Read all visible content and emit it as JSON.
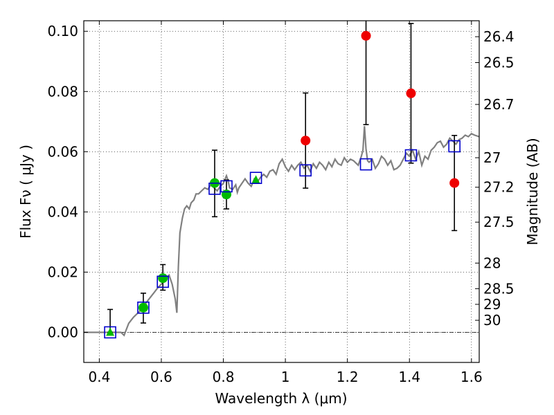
{
  "chart_data": {
    "type": "scatter",
    "xlabel": "Wavelength  λ (μm)",
    "ylabel": "Flux  Fν  ( μJy )",
    "ylabel_right": "Magnitude (AB)",
    "xlim": [
      0.35,
      1.625
    ],
    "ylim": [
      -0.01,
      0.1035
    ],
    "grid": true,
    "x_ticks": [
      {
        "value": 0.4,
        "label": "0.4"
      },
      {
        "value": 0.6,
        "label": "0.6"
      },
      {
        "value": 0.8,
        "label": "0.8"
      },
      {
        "value": 1.0,
        "label": "1"
      },
      {
        "value": 1.2,
        "label": "1.2"
      },
      {
        "value": 1.4,
        "label": "1.4"
      },
      {
        "value": 1.6,
        "label": "1.6"
      }
    ],
    "y_ticks": [
      {
        "value": 0.0,
        "label": "0.00"
      },
      {
        "value": 0.02,
        "label": "0.02"
      },
      {
        "value": 0.04,
        "label": "0.04"
      },
      {
        "value": 0.06,
        "label": "0.06"
      },
      {
        "value": 0.08,
        "label": "0.08"
      },
      {
        "value": 0.1,
        "label": "0.10"
      }
    ],
    "mag_ticks": [
      {
        "flux": 0.0982,
        "label": "26.4"
      },
      {
        "flux": 0.0896,
        "label": "26.5"
      },
      {
        "flux": 0.0757,
        "label": "26.7"
      },
      {
        "flux": 0.058,
        "label": "27"
      },
      {
        "flux": 0.0482,
        "label": "27.2"
      },
      {
        "flux": 0.0366,
        "label": "27.5"
      },
      {
        "flux": 0.023,
        "label": "28"
      },
      {
        "flux": 0.0145,
        "label": "28.5"
      },
      {
        "flux": 0.0093,
        "label": "29"
      },
      {
        "flux": 0.004,
        "label": "30"
      }
    ],
    "series": [
      {
        "name": "model-spectrum",
        "kind": "line",
        "color": "#808080",
        "points": [
          [
            0.35,
            0.0
          ],
          [
            0.4,
            0.0
          ],
          [
            0.45,
            0.0
          ],
          [
            0.47,
            0.0
          ],
          [
            0.48,
            -0.001
          ],
          [
            0.495,
            0.003
          ],
          [
            0.51,
            0.005
          ],
          [
            0.53,
            0.007
          ],
          [
            0.545,
            0.009
          ],
          [
            0.56,
            0.011
          ],
          [
            0.575,
            0.013
          ],
          [
            0.59,
            0.015
          ],
          [
            0.6,
            0.016
          ],
          [
            0.615,
            0.018
          ],
          [
            0.625,
            0.019
          ],
          [
            0.635,
            0.016
          ],
          [
            0.645,
            0.011
          ],
          [
            0.65,
            0.0065
          ],
          [
            0.655,
            0.022
          ],
          [
            0.66,
            0.033
          ],
          [
            0.668,
            0.038
          ],
          [
            0.675,
            0.041
          ],
          [
            0.682,
            0.042
          ],
          [
            0.69,
            0.041
          ],
          [
            0.696,
            0.043
          ],
          [
            0.705,
            0.044
          ],
          [
            0.712,
            0.046
          ],
          [
            0.72,
            0.046
          ],
          [
            0.73,
            0.047
          ],
          [
            0.74,
            0.048
          ],
          [
            0.75,
            0.0475
          ],
          [
            0.76,
            0.049
          ],
          [
            0.77,
            0.048
          ],
          [
            0.78,
            0.047
          ],
          [
            0.79,
            0.0485
          ],
          [
            0.8,
            0.0495
          ],
          [
            0.81,
            0.052
          ],
          [
            0.815,
            0.0505
          ],
          [
            0.82,
            0.048
          ],
          [
            0.83,
            0.0475
          ],
          [
            0.84,
            0.049
          ],
          [
            0.845,
            0.0465
          ],
          [
            0.85,
            0.048
          ],
          [
            0.86,
            0.0495
          ],
          [
            0.87,
            0.051
          ],
          [
            0.88,
            0.0495
          ],
          [
            0.89,
            0.0485
          ],
          [
            0.9,
            0.051
          ],
          [
            0.91,
            0.05
          ],
          [
            0.92,
            0.0515
          ],
          [
            0.93,
            0.0525
          ],
          [
            0.94,
            0.0515
          ],
          [
            0.95,
            0.0535
          ],
          [
            0.96,
            0.054
          ],
          [
            0.97,
            0.0525
          ],
          [
            0.98,
            0.056
          ],
          [
            0.99,
            0.0575
          ],
          [
            1.0,
            0.055
          ],
          [
            1.01,
            0.0535
          ],
          [
            1.02,
            0.0555
          ],
          [
            1.03,
            0.054
          ],
          [
            1.04,
            0.0555
          ],
          [
            1.05,
            0.0565
          ],
          [
            1.06,
            0.0545
          ],
          [
            1.07,
            0.0555
          ],
          [
            1.08,
            0.0535
          ],
          [
            1.09,
            0.056
          ],
          [
            1.1,
            0.0545
          ],
          [
            1.11,
            0.0565
          ],
          [
            1.12,
            0.0555
          ],
          [
            1.13,
            0.054
          ],
          [
            1.14,
            0.0565
          ],
          [
            1.15,
            0.055
          ],
          [
            1.16,
            0.0575
          ],
          [
            1.17,
            0.056
          ],
          [
            1.18,
            0.0555
          ],
          [
            1.19,
            0.058
          ],
          [
            1.2,
            0.0565
          ],
          [
            1.21,
            0.0575
          ],
          [
            1.22,
            0.057
          ],
          [
            1.235,
            0.0555
          ],
          [
            1.245,
            0.0585
          ],
          [
            1.25,
            0.0605
          ],
          [
            1.255,
            0.0685
          ],
          [
            1.26,
            0.061
          ],
          [
            1.265,
            0.057
          ],
          [
            1.27,
            0.0565
          ],
          [
            1.28,
            0.0575
          ],
          [
            1.29,
            0.0545
          ],
          [
            1.3,
            0.056
          ],
          [
            1.31,
            0.0585
          ],
          [
            1.32,
            0.0575
          ],
          [
            1.33,
            0.0555
          ],
          [
            1.34,
            0.057
          ],
          [
            1.35,
            0.054
          ],
          [
            1.36,
            0.0545
          ],
          [
            1.37,
            0.0555
          ],
          [
            1.38,
            0.0575
          ],
          [
            1.39,
            0.0595
          ],
          [
            1.4,
            0.0585
          ],
          [
            1.41,
            0.0605
          ],
          [
            1.42,
            0.0575
          ],
          [
            1.43,
            0.06
          ],
          [
            1.44,
            0.0555
          ],
          [
            1.45,
            0.0585
          ],
          [
            1.46,
            0.0575
          ],
          [
            1.47,
            0.0605
          ],
          [
            1.48,
            0.0615
          ],
          [
            1.49,
            0.063
          ],
          [
            1.5,
            0.0635
          ],
          [
            1.51,
            0.0615
          ],
          [
            1.52,
            0.0625
          ],
          [
            1.53,
            0.0645
          ],
          [
            1.54,
            0.0635
          ],
          [
            1.55,
            0.0625
          ],
          [
            1.56,
            0.064
          ],
          [
            1.57,
            0.0645
          ],
          [
            1.58,
            0.0655
          ],
          [
            1.59,
            0.065
          ],
          [
            1.6,
            0.066
          ],
          [
            1.61,
            0.0655
          ],
          [
            1.625,
            0.065
          ]
        ]
      },
      {
        "name": "model-photometry",
        "kind": "open-square",
        "color": "#0000cc",
        "x": [
          0.435,
          0.542,
          0.605,
          0.772,
          0.81,
          0.905,
          1.065,
          1.26,
          1.405,
          1.545
        ],
        "y": [
          0.0,
          0.0082,
          0.0168,
          0.0477,
          0.0485,
          0.0513,
          0.0538,
          0.0558,
          0.0588,
          0.0618
        ]
      },
      {
        "name": "observed-detections",
        "kind": "filled-circle",
        "color": "#00bb00",
        "x": [
          0.542,
          0.605,
          0.772,
          0.81
        ],
        "y": [
          0.0082,
          0.018,
          0.0496,
          0.0458
        ],
        "err_low": [
          0.0051,
          0.004,
          0.0112,
          0.0048
        ],
        "err_high": [
          0.0048,
          0.0045,
          0.0109,
          0.0048
        ]
      },
      {
        "name": "observed-upper-limits",
        "kind": "filled-triangle",
        "color": "#00bb00",
        "x": [
          0.435,
          0.905
        ],
        "y": [
          0.0,
          0.0506
        ],
        "err_low": [
          0.0,
          0.0
        ],
        "err_high": [
          0.0076,
          0.0
        ]
      },
      {
        "name": "observed-nir",
        "kind": "filled-circle",
        "color": "#ee0000",
        "x": [
          1.065,
          1.26,
          1.405,
          1.545
        ],
        "y": [
          0.0637,
          0.0985,
          0.0794,
          0.0496
        ],
        "err_low": [
          0.0158,
          0.0295,
          0.0232,
          0.0158
        ],
        "err_high": [
          0.0158,
          0.006,
          0.0232,
          0.0158
        ]
      }
    ]
  }
}
